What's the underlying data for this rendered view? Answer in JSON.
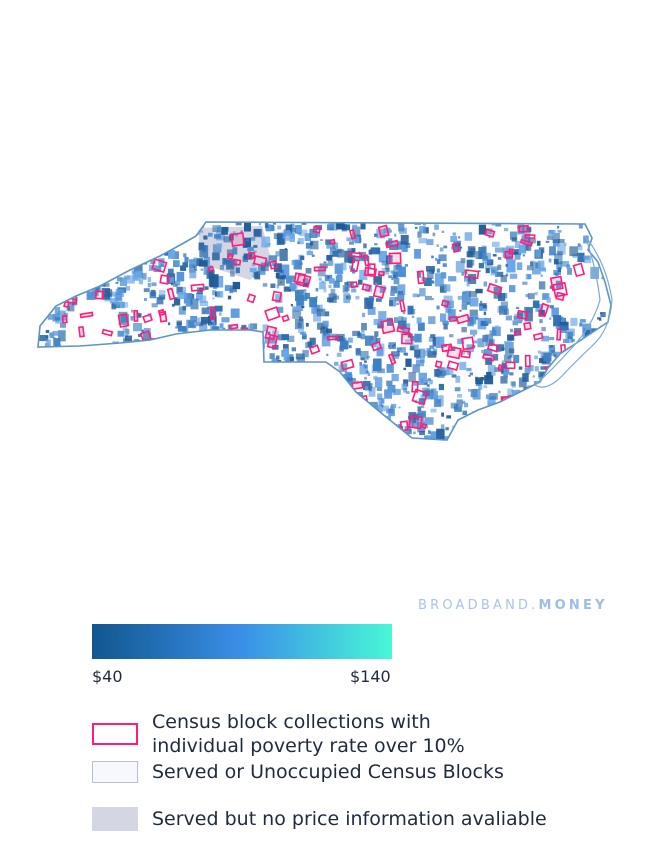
{
  "map": {
    "region": "North Carolina",
    "colors": {
      "outline": "#5d95c3",
      "price_low": "#11568e",
      "price_mid": "#3a8fe8",
      "price_high": "#48f7d6",
      "poverty_outline": "#ff1f7a",
      "no_price_fill": "#d4d6e3"
    }
  },
  "brand": {
    "part1": "BROADBAND.",
    "part2": "MONEY"
  },
  "legend": {
    "scale_min": "$40",
    "scale_max": "$140",
    "items": [
      {
        "label": "Census block collections with individual poverty rate over 10%"
      },
      {
        "label": "Served or Unoccupied Census Blocks"
      },
      {
        "label": "Served but no price information avaliable"
      }
    ]
  }
}
